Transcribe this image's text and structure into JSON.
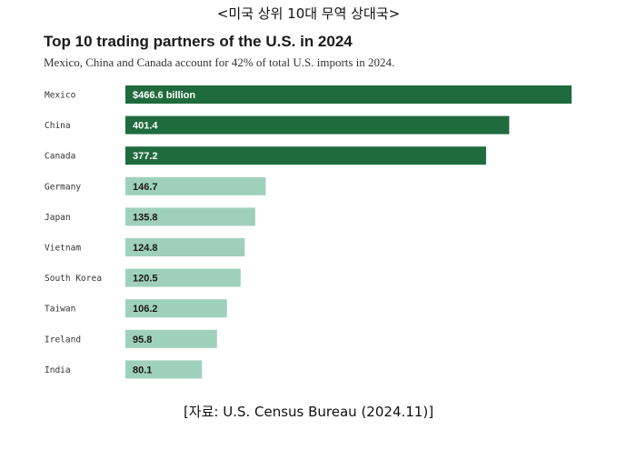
{
  "caption": "<미국 상위 10대 무역 상대국>",
  "source": "[자료: U.S. Census Bureau (2024.11)]",
  "chart_data": {
    "type": "bar",
    "orientation": "horizontal",
    "title": "Top 10 trading partners of the U.S. in 2024",
    "subtitle": "Mexico, China and Canada account for 42% of total U.S. imports in 2024.",
    "categories": [
      "Mexico",
      "China",
      "Canada",
      "Germany",
      "Japan",
      "Vietnam",
      "South Korea",
      "Taiwan",
      "Ireland",
      "India"
    ],
    "values": [
      466.6,
      401.4,
      377.2,
      146.7,
      135.8,
      124.8,
      120.5,
      106.2,
      95.8,
      80.1
    ],
    "value_labels": [
      "$466.6 billion",
      "401.4",
      "377.2",
      "146.7",
      "135.8",
      "124.8",
      "120.5",
      "106.2",
      "95.8",
      "80.1"
    ],
    "highlight_count": 3,
    "colors": {
      "highlight": "#1f6b3d",
      "normal": "#9fd0bb",
      "highlight_text": "#ffffff",
      "normal_text": "#1a1a1a"
    },
    "xlim": [
      0,
      466.6
    ],
    "grid": false,
    "legend": "none"
  }
}
